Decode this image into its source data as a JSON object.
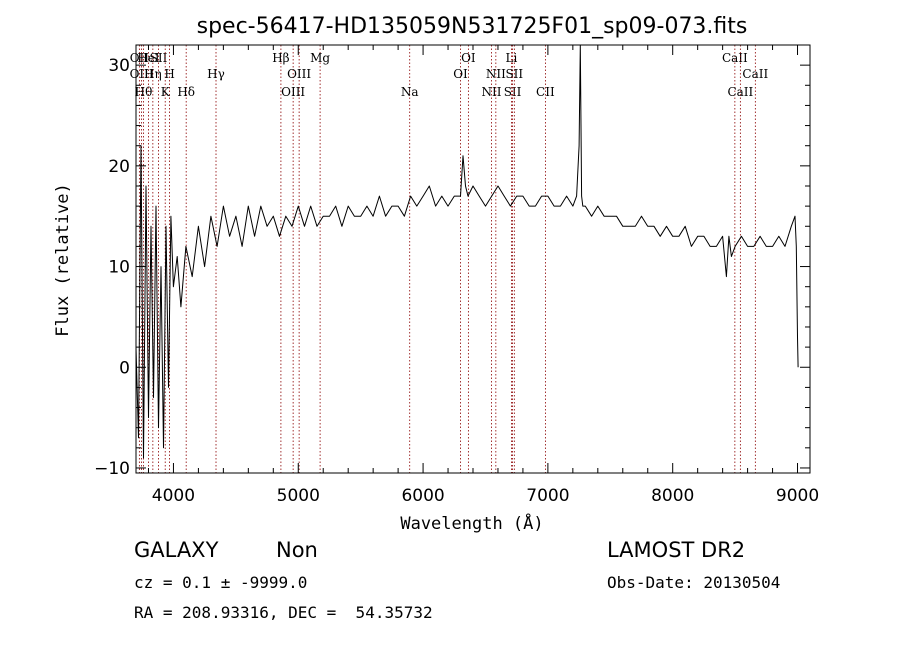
{
  "chart_data": {
    "type": "line",
    "title": "spec-56417-HD135059N531725F01_sp09-073.fits",
    "xlabel": "Wavelength (Å)",
    "ylabel": "Flux (relative)",
    "xlim": [
      3700,
      9100
    ],
    "ylim": [
      -10.5,
      32
    ],
    "xticks": [
      4000,
      5000,
      6000,
      7000,
      8000,
      9000
    ],
    "yticks": [
      -10,
      0,
      10,
      20,
      30
    ],
    "grid": false,
    "series": [
      {
        "x": [
          3700,
          3720,
          3740,
          3760,
          3780,
          3800,
          3820,
          3840,
          3860,
          3880,
          3900,
          3920,
          3940,
          3960,
          3980,
          4000,
          4030,
          4060,
          4100,
          4150,
          4200,
          4250,
          4300,
          4350,
          4400,
          4450,
          4500,
          4550,
          4600,
          4650,
          4700,
          4750,
          4800,
          4850,
          4900,
          4950,
          5000,
          5050,
          5100,
          5150,
          5200,
          5250,
          5300,
          5350,
          5400,
          5450,
          5500,
          5550,
          5600,
          5650,
          5700,
          5750,
          5800,
          5850,
          5900,
          5950,
          6000,
          6050,
          6100,
          6150,
          6200,
          6250,
          6300,
          6320,
          6340,
          6360,
          6400,
          6450,
          6500,
          6550,
          6600,
          6650,
          6700,
          6750,
          6800,
          6850,
          6900,
          6950,
          7000,
          7050,
          7100,
          7150,
          7200,
          7230,
          7250,
          7260,
          7265,
          7270,
          7280,
          7300,
          7350,
          7400,
          7450,
          7500,
          7550,
          7600,
          7650,
          7700,
          7750,
          7800,
          7850,
          7900,
          7950,
          8000,
          8050,
          8100,
          8150,
          8200,
          8250,
          8300,
          8350,
          8400,
          8430,
          8450,
          8470,
          8500,
          8550,
          8600,
          8650,
          8700,
          8750,
          8800,
          8850,
          8900,
          8950,
          8980,
          8990,
          9000,
          9005
        ],
        "values": [
          2,
          -7,
          22,
          -9,
          18,
          -5,
          14,
          -3,
          16,
          -6,
          10,
          -8,
          14,
          -2,
          15,
          8,
          11,
          6,
          12,
          9,
          14,
          10,
          15,
          12,
          16,
          13,
          15,
          12,
          16,
          13,
          16,
          14,
          15,
          13,
          15,
          14,
          16,
          14,
          16,
          14,
          15,
          15,
          16,
          14,
          16,
          15,
          15,
          16,
          15,
          17,
          15,
          16,
          16,
          15,
          17,
          16,
          17,
          18,
          16,
          17,
          16,
          17,
          17,
          21,
          18,
          17,
          18,
          17,
          16,
          17,
          18,
          17,
          16,
          17,
          17,
          16,
          16,
          17,
          17,
          16,
          16,
          17,
          16,
          17,
          22,
          32,
          24,
          17,
          16,
          16,
          15,
          16,
          15,
          15,
          15,
          14,
          14,
          14,
          15,
          14,
          14,
          13,
          14,
          13,
          13,
          14,
          12,
          13,
          13,
          12,
          12,
          13,
          9,
          13,
          11,
          12,
          13,
          12,
          12,
          13,
          12,
          12,
          13,
          12,
          14,
          15,
          12,
          3,
          0
        ]
      }
    ],
    "line_markers": [
      {
        "label": "OII",
        "x": 3727,
        "row": 1
      },
      {
        "label": "OIII",
        "x": 3745,
        "row": 2
      },
      {
        "label": "Hθ",
        "x": 3760,
        "row": 3
      },
      {
        "label": "HeI",
        "x": 3800,
        "row": 1
      },
      {
        "label": "Hη",
        "x": 3835,
        "row": 2
      },
      {
        "label": "SII",
        "x": 3880,
        "row": 1
      },
      {
        "label": "K",
        "x": 3934,
        "row": 3
      },
      {
        "label": "H",
        "x": 3969,
        "row": 2
      },
      {
        "label": "Hδ",
        "x": 4102,
        "row": 3
      },
      {
        "label": "Hγ",
        "x": 4341,
        "row": 2
      },
      {
        "label": "Hβ",
        "x": 4861,
        "row": 1
      },
      {
        "label": "OIII",
        "x": 4959,
        "row": 3
      },
      {
        "label": "OIII",
        "x": 5007,
        "row": 2
      },
      {
        "label": "Mg",
        "x": 5175,
        "row": 1
      },
      {
        "label": "Na",
        "x": 5893,
        "row": 3
      },
      {
        "label": "OI",
        "x": 6300,
        "row": 2
      },
      {
        "label": "OI",
        "x": 6363,
        "row": 1
      },
      {
        "label": "NII",
        "x": 6548,
        "row": 3
      },
      {
        "label": "NII",
        "x": 6583,
        "row": 2
      },
      {
        "label": "SII",
        "x": 6717,
        "row": 3
      },
      {
        "label": "Li",
        "x": 6708,
        "row": 1
      },
      {
        "label": "SII",
        "x": 6731,
        "row": 2
      },
      {
        "label": "CII",
        "x": 6980,
        "row": 3
      },
      {
        "label": "CaII",
        "x": 8498,
        "row": 1
      },
      {
        "label": "CaII",
        "x": 8542,
        "row": 3
      },
      {
        "label": "CaII",
        "x": 8662,
        "row": 2
      }
    ],
    "marker_color": "#8b0000"
  },
  "info": {
    "class": "GALAXY",
    "subclass": "Non",
    "survey": "LAMOST DR2",
    "cz": "cz = 0.1 ± -9999.0",
    "obs_date": "Obs-Date: 20130504",
    "coords": "RA = 208.93316, DEC =  54.35732"
  }
}
